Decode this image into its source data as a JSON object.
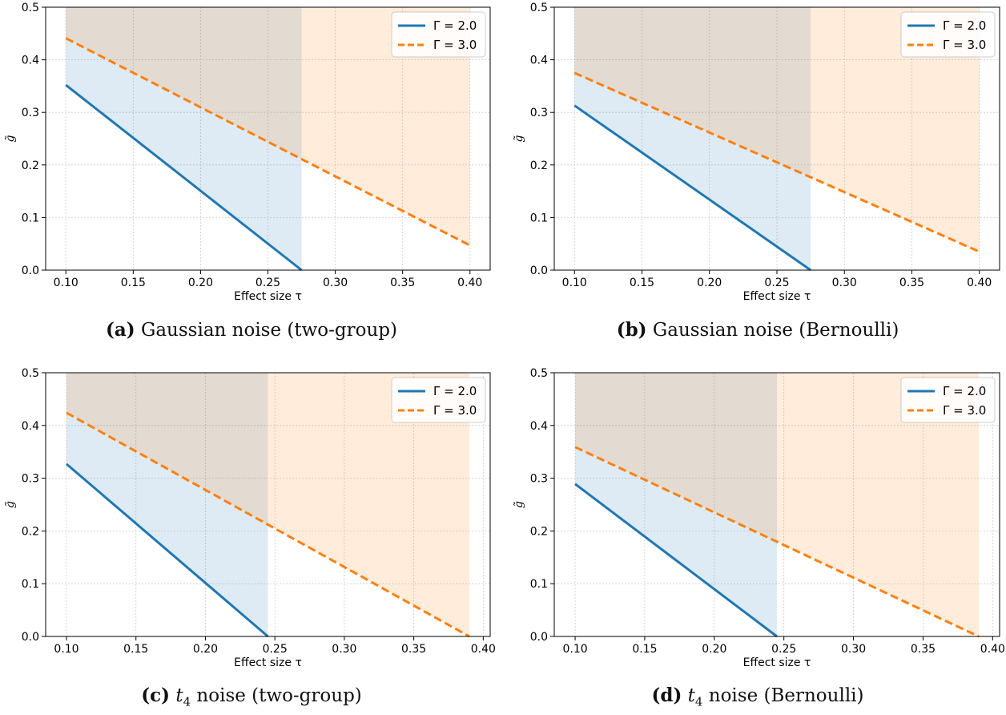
{
  "chart_data": [
    {
      "type": "line",
      "caption": {
        "tag": "(a)",
        "text": "Gaussian noise (two-group)"
      },
      "xlabel": "Effect size τ",
      "ylabel": "g̃",
      "xlim": [
        0.085,
        0.415
      ],
      "ylim": [
        0.0,
        0.5
      ],
      "xticks": [
        "0.10",
        "0.15",
        "0.20",
        "0.25",
        "0.30",
        "0.35",
        "0.40"
      ],
      "yticks": [
        "0.0",
        "0.1",
        "0.2",
        "0.3",
        "0.4",
        "0.5"
      ],
      "grid": true,
      "legend_position": "top-right",
      "series": [
        {
          "name": "Γ = 2.0",
          "color": "#1f77b4",
          "style": "solid",
          "x": [
            0.1,
            0.275
          ],
          "y": [
            0.352,
            0.0
          ],
          "shade_to": 0.5
        },
        {
          "name": "Γ = 3.0",
          "color": "#ff7f0e",
          "style": "dashed",
          "x": [
            0.1,
            0.4
          ],
          "y": [
            0.441,
            0.047
          ],
          "shade_to": 0.5
        }
      ]
    },
    {
      "type": "line",
      "caption": {
        "tag": "(b)",
        "text": "Gaussian noise (Bernoulli)"
      },
      "xlabel": "Effect size τ",
      "ylabel": "g̃",
      "xlim": [
        0.085,
        0.415
      ],
      "ylim": [
        0.0,
        0.5
      ],
      "xticks": [
        "0.10",
        "0.15",
        "0.20",
        "0.25",
        "0.30",
        "0.35",
        "0.40"
      ],
      "yticks": [
        "0.0",
        "0.1",
        "0.2",
        "0.3",
        "0.4",
        "0.5"
      ],
      "grid": true,
      "legend_position": "top-right",
      "series": [
        {
          "name": "Γ = 2.0",
          "color": "#1f77b4",
          "style": "solid",
          "x": [
            0.1,
            0.275
          ],
          "y": [
            0.313,
            0.0
          ],
          "shade_to": 0.5
        },
        {
          "name": "Γ = 3.0",
          "color": "#ff7f0e",
          "style": "dashed",
          "x": [
            0.1,
            0.4
          ],
          "y": [
            0.375,
            0.035
          ],
          "shade_to": 0.5
        }
      ]
    },
    {
      "type": "line",
      "caption": {
        "tag": "(c)",
        "math": "t",
        "sub": "4",
        "text": "noise (two-group)"
      },
      "xlabel": "Effect size τ",
      "ylabel": "g̃",
      "xlim": [
        0.085,
        0.405
      ],
      "ylim": [
        0.0,
        0.5
      ],
      "xticks": [
        "0.10",
        "0.15",
        "0.20",
        "0.25",
        "0.30",
        "0.35",
        "0.40"
      ],
      "yticks": [
        "0.0",
        "0.1",
        "0.2",
        "0.3",
        "0.4",
        "0.5"
      ],
      "grid": true,
      "legend_position": "top-right",
      "series": [
        {
          "name": "Γ = 2.0",
          "color": "#1f77b4",
          "style": "solid",
          "x": [
            0.1,
            0.245
          ],
          "y": [
            0.327,
            0.0
          ],
          "shade_to": 0.5
        },
        {
          "name": "Γ = 3.0",
          "color": "#ff7f0e",
          "style": "dashed",
          "x": [
            0.1,
            0.39
          ],
          "y": [
            0.424,
            0.0
          ],
          "shade_to": 0.5
        }
      ]
    },
    {
      "type": "line",
      "caption": {
        "tag": "(d)",
        "math": "t",
        "sub": "4",
        "text": "noise (Bernoulli)"
      },
      "xlabel": "Effect size τ",
      "ylabel": "g̃",
      "xlim": [
        0.085,
        0.405
      ],
      "ylim": [
        0.0,
        0.5
      ],
      "xticks": [
        "0.10",
        "0.15",
        "0.20",
        "0.25",
        "0.30",
        "0.35",
        "0.40"
      ],
      "yticks": [
        "0.0",
        "0.1",
        "0.2",
        "0.3",
        "0.4",
        "0.5"
      ],
      "grid": true,
      "legend_position": "top-right",
      "series": [
        {
          "name": "Γ = 2.0",
          "color": "#1f77b4",
          "style": "solid",
          "x": [
            0.1,
            0.245
          ],
          "y": [
            0.289,
            0.0
          ],
          "shade_to": 0.5
        },
        {
          "name": "Γ = 3.0",
          "color": "#ff7f0e",
          "style": "dashed",
          "x": [
            0.1,
            0.39
          ],
          "y": [
            0.359,
            0.0
          ],
          "shade_to": 0.5
        }
      ]
    }
  ]
}
